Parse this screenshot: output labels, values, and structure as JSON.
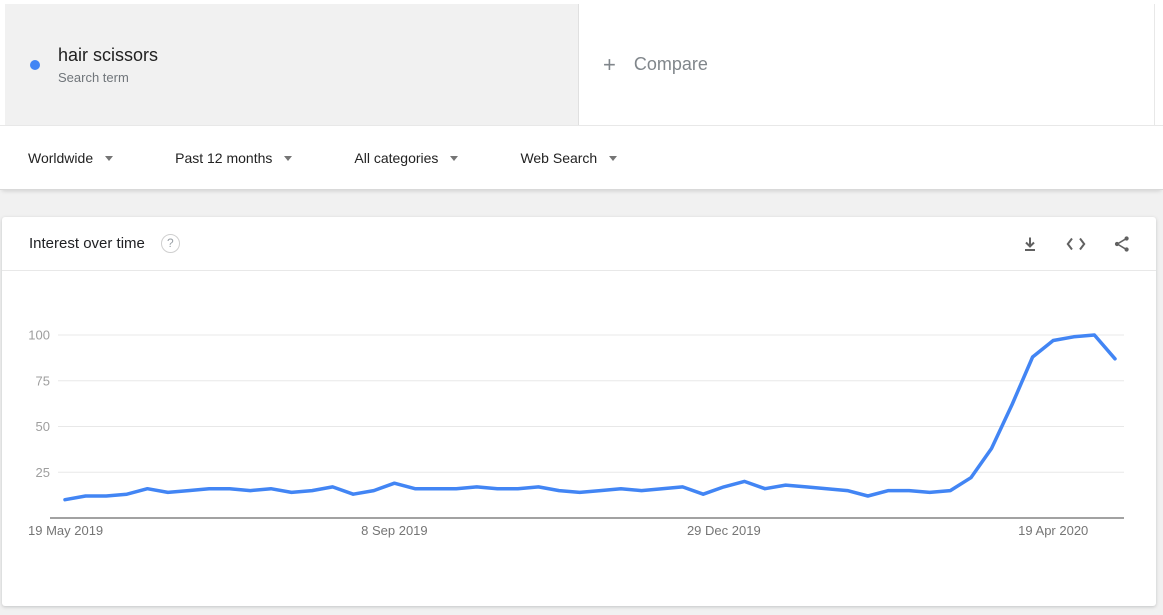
{
  "accent_color": "#4285f4",
  "terms_row": {
    "term": {
      "label": "hair scissors",
      "sublabel": "Search term",
      "dot_color": "#4285f4"
    },
    "compare": {
      "plus": "+",
      "label": "Compare"
    }
  },
  "filters": {
    "items": [
      {
        "label": "Worldwide"
      },
      {
        "label": "Past 12 months"
      },
      {
        "label": "All categories"
      },
      {
        "label": "Web Search"
      }
    ]
  },
  "widget": {
    "title": "Interest over time",
    "help_glyph": "?",
    "actions": [
      {
        "name": "download-icon"
      },
      {
        "name": "embed-icon"
      },
      {
        "name": "share-icon"
      }
    ]
  },
  "chart_data": {
    "type": "line",
    "title": "Interest over time",
    "x_start": "19 May 2019",
    "x_tick_labels": [
      "19 May 2019",
      "8 Sep 2019",
      "29 Dec 2019",
      "19 Apr 2020"
    ],
    "x_tick_indices": [
      0,
      16,
      32,
      48
    ],
    "y_ticks": [
      25,
      50,
      75,
      100
    ],
    "ylim": [
      0,
      100
    ],
    "grid": true,
    "legend": "none",
    "series": [
      {
        "name": "hair scissors",
        "color": "#4285f4",
        "values": [
          10,
          12,
          12,
          13,
          16,
          14,
          15,
          16,
          16,
          15,
          16,
          14,
          15,
          17,
          13,
          15,
          19,
          16,
          16,
          16,
          17,
          16,
          16,
          17,
          15,
          14,
          15,
          16,
          15,
          16,
          17,
          13,
          17,
          20,
          16,
          18,
          17,
          16,
          15,
          12,
          15,
          15,
          14,
          15,
          22,
          38,
          62,
          88,
          97,
          99,
          100,
          87
        ]
      }
    ]
  }
}
